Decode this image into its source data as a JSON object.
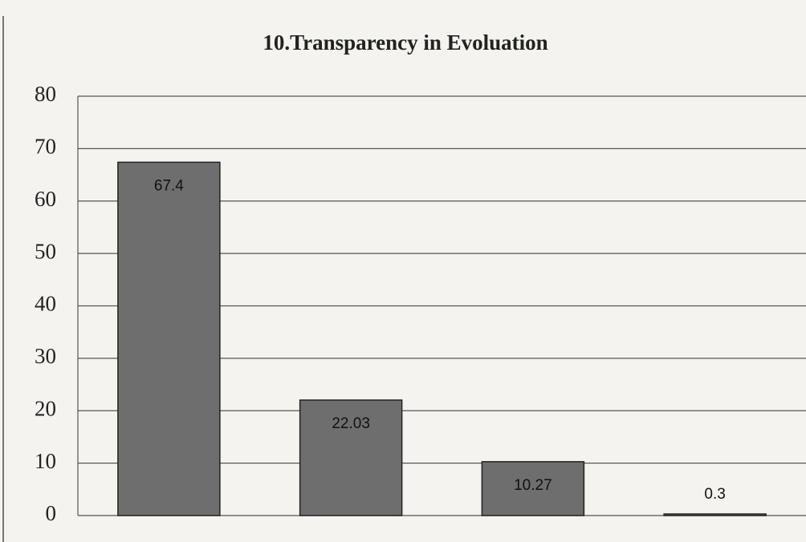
{
  "chart_data": {
    "type": "bar",
    "title": "10.Transparency in Evoluation",
    "categories": [
      null,
      null,
      null,
      null
    ],
    "values": [
      67.4,
      22.03,
      10.27,
      0.3
    ],
    "color": "#6e6e6e",
    "ylim": [
      0,
      80
    ],
    "yticks": [
      0,
      10,
      20,
      30,
      40,
      50,
      60,
      70,
      80
    ],
    "grid": true
  }
}
